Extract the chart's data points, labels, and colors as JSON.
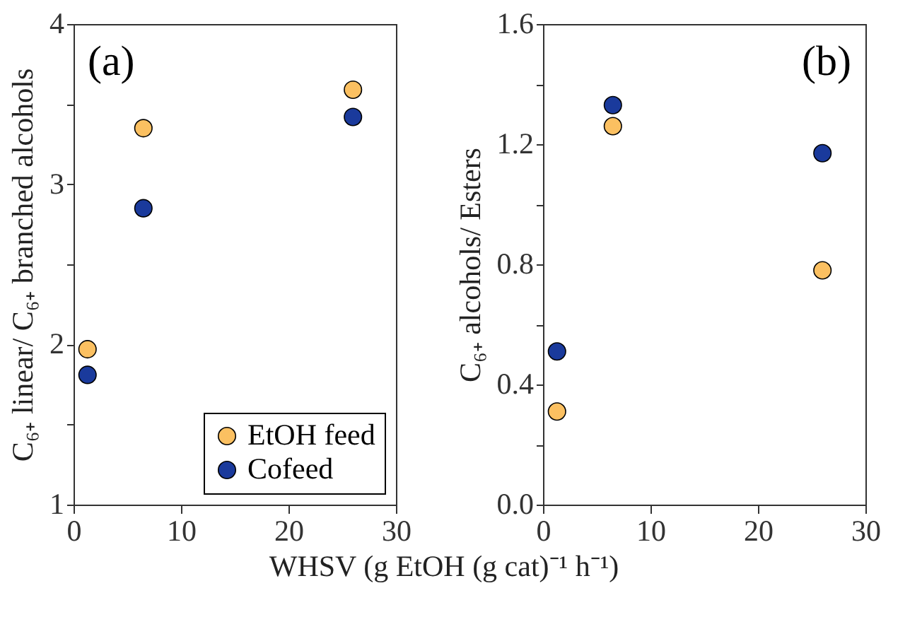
{
  "chart_data": [
    {
      "type": "scatter",
      "xlabel": "WHSV (g EtOH (g cat)⁻¹ h⁻¹)",
      "ylabel": "C₆₊ linear/ C₆₊ branched alcohols",
      "annotations": [
        "(a)"
      ],
      "x": [
        1.3,
        6.5,
        26
      ],
      "xlim": [
        0,
        30
      ],
      "xticks": [
        0,
        10,
        20,
        30
      ],
      "ylim": [
        1,
        4
      ],
      "yticks": [
        1,
        {
          "value": 1.5,
          "label": null
        },
        2,
        {
          "value": 2.5,
          "label": null
        },
        3,
        {
          "value": 3.5,
          "label": null
        },
        4
      ],
      "marker": "circle",
      "grid": false,
      "legend": "bottom right",
      "series": [
        {
          "name": "EtOH feed",
          "color": "#fbc061",
          "values": [
            1.97,
            3.35,
            3.59
          ]
        },
        {
          "name": "Cofeed",
          "color": "#1a3a9c",
          "values": [
            1.81,
            2.85,
            3.42
          ]
        }
      ]
    },
    {
      "type": "scatter",
      "ylabel": "C₆₊ alcohols/ Esters",
      "annotations": [
        "(b)"
      ],
      "x": [
        1.3,
        6.5,
        26
      ],
      "xlim": [
        0,
        30
      ],
      "xticks": [
        0,
        10,
        20,
        30
      ],
      "ylim": [
        0,
        1.6
      ],
      "yticks": [
        {
          "value": 0,
          "label": "0.0"
        },
        {
          "value": 0.2,
          "label": null
        },
        0.4,
        {
          "value": 0.6,
          "label": null
        },
        0.8,
        {
          "value": 1.0,
          "label": null
        },
        1.2,
        {
          "value": 1.4,
          "label": null
        },
        1.6
      ],
      "marker": "circle",
      "grid": false,
      "legend": false,
      "series": [
        {
          "color": "#fbc061",
          "values": [
            0.31,
            1.26,
            0.78
          ]
        },
        {
          "color": "#1a3a9c",
          "values": [
            0.51,
            1.33,
            1.17
          ]
        }
      ]
    }
  ]
}
